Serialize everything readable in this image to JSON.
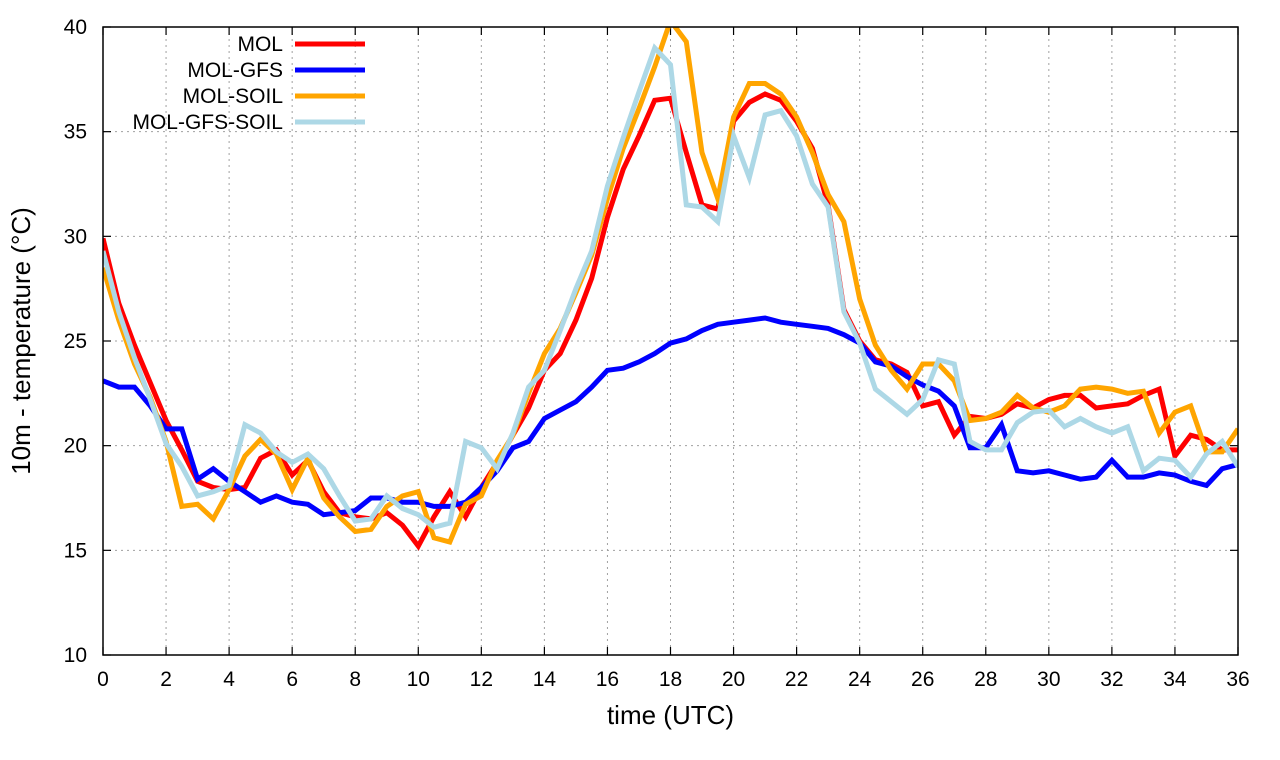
{
  "chart_data": {
    "type": "line",
    "title": "",
    "xlabel": "time (UTC)",
    "ylabel": "10m - temperature (°C)",
    "xlim": [
      0,
      36
    ],
    "ylim": [
      10,
      40
    ],
    "xticks": [
      0,
      2,
      4,
      6,
      8,
      10,
      12,
      14,
      16,
      18,
      20,
      22,
      24,
      26,
      28,
      30,
      32,
      34,
      36
    ],
    "yticks": [
      10,
      15,
      20,
      25,
      30,
      35,
      40
    ],
    "grid": true,
    "legend_position": "top-left",
    "x": [
      0,
      0.5,
      1,
      1.5,
      2,
      2.5,
      3,
      3.5,
      4,
      4.5,
      5,
      5.5,
      6,
      6.5,
      7,
      7.5,
      8,
      8.5,
      9,
      9.5,
      10,
      10.5,
      11,
      11.5,
      12,
      12.5,
      13,
      13.5,
      14,
      14.5,
      15,
      15.5,
      16,
      16.5,
      17,
      17.5,
      18,
      18.5,
      19,
      19.5,
      20,
      20.5,
      21,
      21.5,
      22,
      22.5,
      23,
      23.5,
      24,
      24.5,
      25,
      25.5,
      26,
      26.5,
      27,
      27.5,
      28,
      28.5,
      29,
      29.5,
      30,
      30.5,
      31,
      31.5,
      32,
      32.5,
      33,
      33.5,
      34,
      34.5,
      35,
      35.5,
      36
    ],
    "series": [
      {
        "name": "MOL",
        "color": "#ff0000",
        "values": [
          29.9,
          26.8,
          24.8,
          23.0,
          21.2,
          19.8,
          18.3,
          18.0,
          17.9,
          18.0,
          19.4,
          19.8,
          18.6,
          19.3,
          17.8,
          16.8,
          16.6,
          16.5,
          16.8,
          16.2,
          15.2,
          16.6,
          17.8,
          16.6,
          18.0,
          19.2,
          20.5,
          21.8,
          23.6,
          24.4,
          26.0,
          28.0,
          30.9,
          33.2,
          34.8,
          36.5,
          36.6,
          34.0,
          31.5,
          31.3,
          35.5,
          36.4,
          36.8,
          36.5,
          35.5,
          34.2,
          31.5,
          26.5,
          25.0,
          24.1,
          23.9,
          23.5,
          21.9,
          22.1,
          20.5,
          21.4,
          21.3,
          21.5,
          22.0,
          21.8,
          22.2,
          22.4,
          22.4,
          21.8,
          21.9,
          22.0,
          22.4,
          22.7,
          19.5,
          20.5,
          20.3,
          19.8,
          19.8
        ]
      },
      {
        "name": "MOL-GFS",
        "color": "#0000ff",
        "values": [
          23.1,
          22.8,
          22.8,
          21.9,
          20.8,
          20.8,
          18.4,
          18.9,
          18.3,
          17.8,
          17.3,
          17.6,
          17.3,
          17.2,
          16.7,
          16.8,
          16.9,
          17.5,
          17.5,
          17.3,
          17.3,
          17.1,
          17.1,
          17.3,
          18.0,
          18.8,
          19.9,
          20.2,
          21.3,
          21.7,
          22.1,
          22.8,
          23.6,
          23.7,
          24.0,
          24.4,
          24.9,
          25.1,
          25.5,
          25.8,
          25.9,
          26.0,
          26.1,
          25.9,
          25.8,
          25.7,
          25.6,
          25.3,
          24.9,
          24.0,
          23.8,
          23.3,
          22.9,
          22.6,
          21.9,
          19.9,
          19.9,
          21.0,
          18.8,
          18.7,
          18.8,
          18.6,
          18.4,
          18.5,
          19.3,
          18.5,
          18.5,
          18.7,
          18.6,
          18.3,
          18.1,
          18.9,
          19.1
        ]
      },
      {
        "name": "MOL-SOIL",
        "color": "#ffa500",
        "values": [
          28.5,
          26.0,
          23.9,
          22.3,
          20.2,
          17.1,
          17.2,
          16.5,
          17.9,
          19.5,
          20.3,
          19.6,
          17.9,
          19.4,
          17.5,
          16.6,
          15.9,
          16.0,
          17.1,
          17.6,
          17.8,
          15.6,
          15.4,
          17.2,
          17.6,
          19.3,
          20.5,
          22.5,
          24.4,
          25.6,
          27.3,
          29.1,
          31.8,
          34.2,
          36.1,
          38.1,
          40.3,
          39.3,
          34.0,
          31.8,
          35.7,
          37.3,
          37.3,
          36.8,
          35.7,
          34.0,
          32.0,
          30.7,
          27.0,
          24.8,
          23.6,
          22.7,
          23.9,
          23.9,
          23.1,
          21.2,
          21.3,
          21.6,
          22.4,
          21.8,
          21.6,
          21.9,
          22.7,
          22.8,
          22.7,
          22.5,
          22.6,
          20.6,
          21.6,
          21.9,
          19.7,
          19.7,
          20.8
        ]
      },
      {
        "name": "MOL-GFS-SOIL",
        "color": "#add8e6",
        "values": [
          29.3,
          26.4,
          24.2,
          22.2,
          20.1,
          19.0,
          17.6,
          17.8,
          18.1,
          21.0,
          20.6,
          19.7,
          19.2,
          19.6,
          18.9,
          17.6,
          16.4,
          16.5,
          17.6,
          17.0,
          16.7,
          16.1,
          16.3,
          20.2,
          19.9,
          18.9,
          20.6,
          22.8,
          23.6,
          25.5,
          27.5,
          29.3,
          32.4,
          34.7,
          36.9,
          39.0,
          38.2,
          31.5,
          31.4,
          30.7,
          34.8,
          32.8,
          35.8,
          36.0,
          34.8,
          32.5,
          31.4,
          26.4,
          24.9,
          22.7,
          22.1,
          21.5,
          22.2,
          24.1,
          23.9,
          20.2,
          19.8,
          19.8,
          21.1,
          21.6,
          21.7,
          20.9,
          21.3,
          20.9,
          20.6,
          20.9,
          18.8,
          19.4,
          19.3,
          18.5,
          19.6,
          20.2,
          19.0
        ]
      }
    ]
  }
}
